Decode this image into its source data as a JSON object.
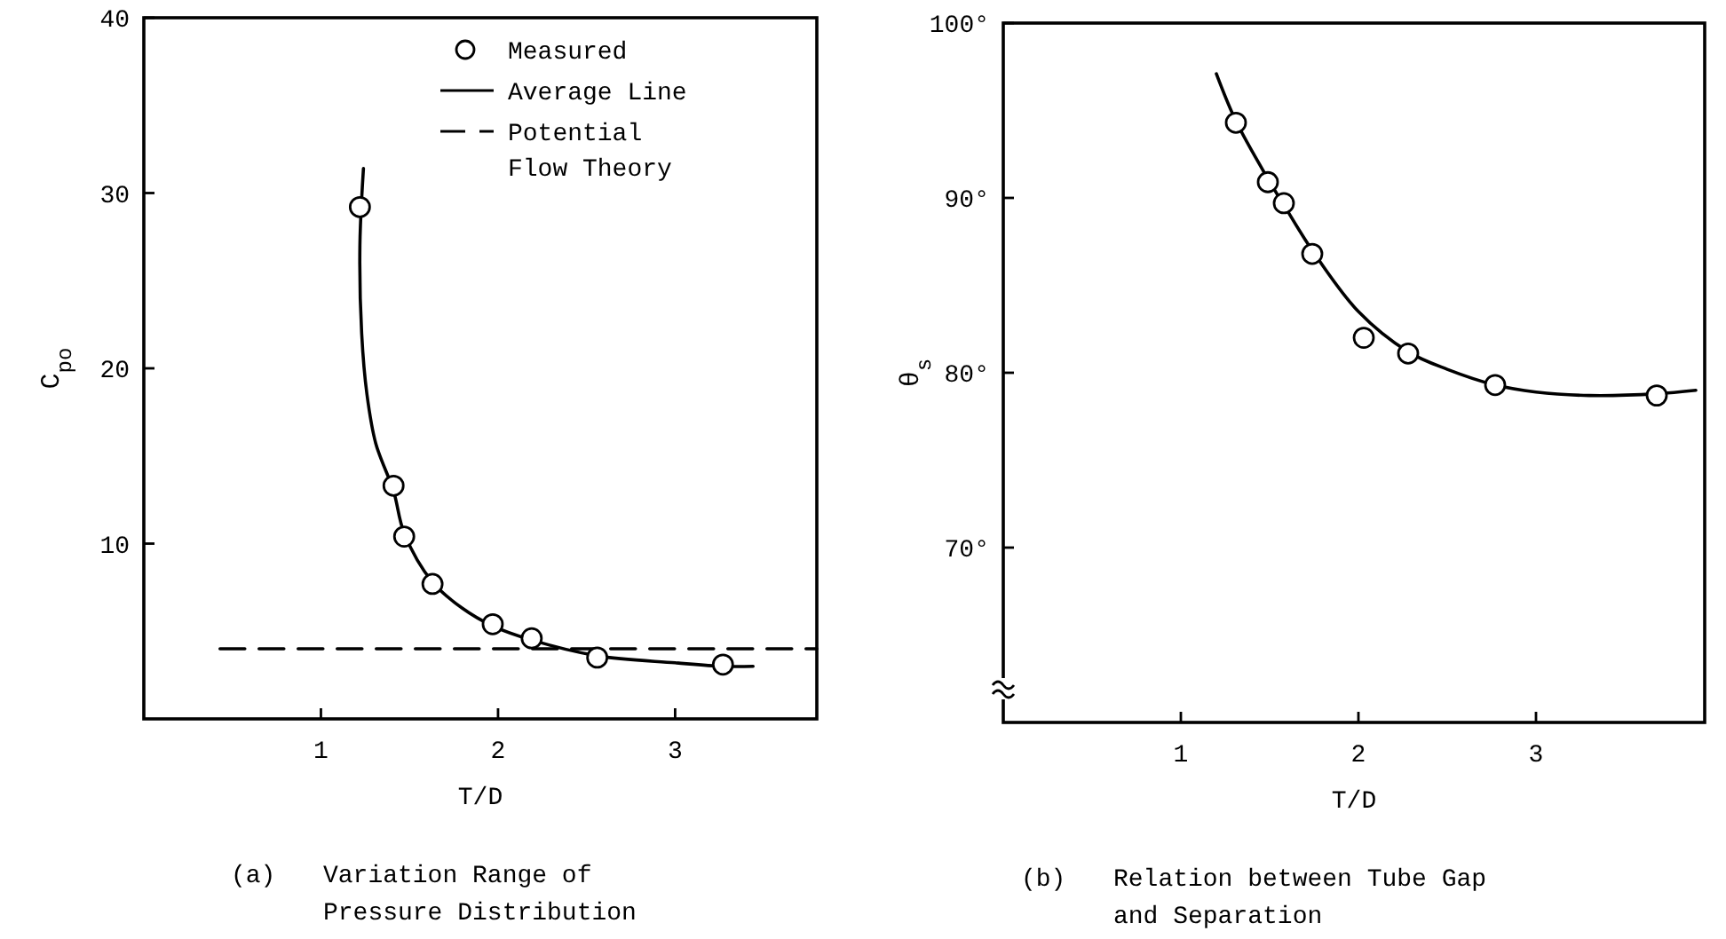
{
  "chart_data": [
    {
      "type": "line",
      "title": "(a) Variation Range of Pressure Distribution",
      "xlabel": "T/D",
      "ylabel": "C$_{po}$",
      "xlim": [
        0,
        3.8
      ],
      "ylim": [
        0,
        40
      ],
      "xticks": [
        1,
        2,
        3
      ],
      "yticks": [
        10,
        20,
        30,
        40
      ],
      "legend": "top right",
      "series": [
        {
          "name": "Measured",
          "type": "scatter",
          "marker": "circle",
          "color": "#000000",
          "x": [
            1.22,
            1.41,
            1.47,
            1.63,
            1.97,
            2.19,
            2.56,
            3.27
          ],
          "values": [
            29.2,
            13.3,
            10.4,
            7.7,
            5.4,
            4.6,
            3.5,
            3.1
          ]
        },
        {
          "name": "Average Line",
          "type": "line",
          "line_style": "solid",
          "color": "#000000",
          "x": [
            1.24,
            1.22,
            1.23,
            1.26,
            1.31,
            1.41,
            1.47,
            1.63,
            1.8,
            1.97,
            2.19,
            2.56,
            3.0,
            3.27,
            3.44
          ],
          "values": [
            31.4,
            27,
            22,
            18.5,
            15.7,
            13.0,
            10.6,
            7.8,
            6.3,
            5.3,
            4.5,
            3.6,
            3.2,
            3.0,
            3.0
          ]
        },
        {
          "name": "Potential Flow Theory",
          "type": "line",
          "line_style": "dashed",
          "color": "#000000",
          "x": [
            0.43,
            3.8
          ],
          "values": [
            4,
            4
          ]
        }
      ]
    },
    {
      "type": "line",
      "title": "(b) Relation between Tube Gap and Separation",
      "xlabel": "T/D",
      "ylabel": "θ$_{s}$",
      "xlim": [
        0,
        3.95
      ],
      "ylim": [
        60,
        100
      ],
      "xticks": [
        1,
        2,
        3
      ],
      "yticks": [
        {
          "value": 70,
          "label": "70°"
        },
        {
          "value": 80,
          "label": "80°"
        },
        {
          "value": 90,
          "label": "90°"
        },
        {
          "value": 100,
          "label": "100°"
        }
      ],
      "legend": false,
      "series": [
        {
          "type": "scatter",
          "marker": "circle",
          "color": "#000000",
          "x": [
            1.31,
            1.49,
            1.58,
            1.74,
            2.03,
            2.28,
            2.77,
            3.68
          ],
          "values": [
            94.3,
            90.9,
            89.7,
            86.8,
            82.0,
            81.1,
            79.3,
            78.7
          ]
        },
        {
          "type": "line",
          "line_style": "solid",
          "color": "#000000",
          "x": [
            1.2,
            1.31,
            1.49,
            1.58,
            1.74,
            2.0,
            2.28,
            2.5,
            2.77,
            3.0,
            3.3,
            3.68,
            3.9
          ],
          "values": [
            97.1,
            94.4,
            91.1,
            89.6,
            87.0,
            83.5,
            81.2,
            80.2,
            79.3,
            78.9,
            78.7,
            78.8,
            79.0
          ]
        }
      ]
    }
  ]
}
